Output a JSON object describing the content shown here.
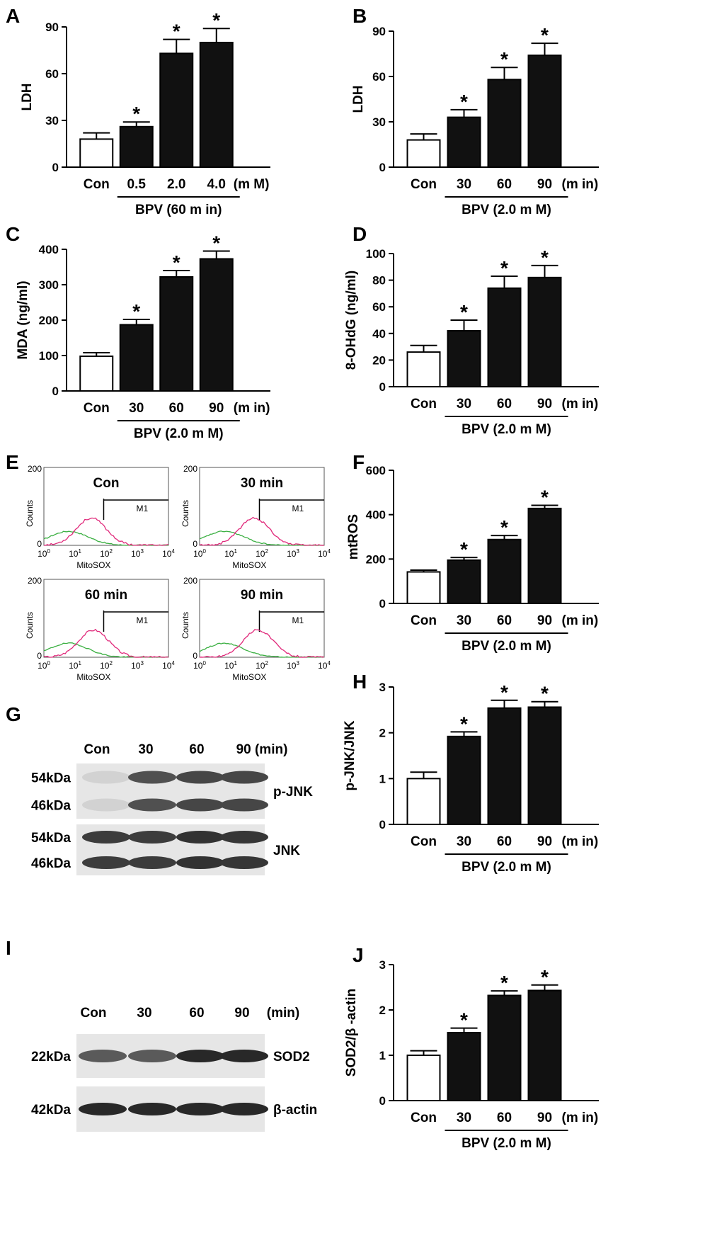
{
  "panel_labels": {
    "A": "A",
    "B": "B",
    "C": "C",
    "D": "D",
    "E": "E",
    "F": "F",
    "G": "G",
    "H": "H",
    "I": "I",
    "J": "J"
  },
  "chart_data": [
    {
      "id": "A",
      "type": "bar",
      "categories": [
        "Con",
        "0.5",
        "2.0",
        "4.0"
      ],
      "unit_label": "(m M)",
      "values": [
        18,
        26,
        73,
        80
      ],
      "errors": [
        4,
        3,
        9,
        9
      ],
      "significant": [
        false,
        true,
        true,
        true
      ],
      "ylabel": "LDH",
      "ylim": [
        0,
        90
      ],
      "yticks": [
        "0",
        "30",
        "60",
        "90"
      ],
      "group_label": "BPV (60 m in)",
      "star_symbol": "*"
    },
    {
      "id": "B",
      "type": "bar",
      "categories": [
        "Con",
        "30",
        "60",
        "90"
      ],
      "unit_label": "(m in)",
      "values": [
        18,
        33,
        58,
        74
      ],
      "errors": [
        4,
        5,
        8,
        8
      ],
      "significant": [
        false,
        true,
        true,
        true
      ],
      "ylabel": "LDH",
      "ylim": [
        0,
        90
      ],
      "yticks": [
        "0",
        "30",
        "60",
        "90"
      ],
      "group_label": "BPV (2.0 m M)",
      "star_symbol": "*"
    },
    {
      "id": "C",
      "type": "bar",
      "categories": [
        "Con",
        "30",
        "60",
        "90"
      ],
      "unit_label": "(m in)",
      "values": [
        98,
        187,
        322,
        373
      ],
      "errors": [
        10,
        15,
        18,
        22
      ],
      "significant": [
        false,
        true,
        true,
        true
      ],
      "ylabel": "MDA  (ng/ml)",
      "ylim": [
        0,
        400
      ],
      "yticks": [
        "0",
        "100",
        "200",
        "300",
        "400"
      ],
      "group_label": "BPV (2.0 m M)",
      "star_symbol": "*"
    },
    {
      "id": "D",
      "type": "bar",
      "categories": [
        "Con",
        "30",
        "60",
        "90"
      ],
      "unit_label": "(m in)",
      "values": [
        26,
        42,
        74,
        82
      ],
      "errors": [
        5,
        8,
        9,
        9
      ],
      "significant": [
        false,
        true,
        true,
        true
      ],
      "ylabel": "8-OHdG (ng/ml)",
      "ylim": [
        0,
        100
      ],
      "yticks": [
        "0",
        "20",
        "40",
        "60",
        "80",
        "100"
      ],
      "group_label": "BPV (2.0 m M)",
      "star_symbol": "*"
    },
    {
      "id": "F",
      "type": "bar",
      "categories": [
        "Con",
        "30",
        "60",
        "90"
      ],
      "unit_label": "(m in)",
      "values": [
        142,
        195,
        288,
        428
      ],
      "errors": [
        8,
        12,
        18,
        14
      ],
      "significant": [
        false,
        true,
        true,
        true
      ],
      "ylabel": "mtROS",
      "ylim": [
        0,
        600
      ],
      "yticks": [
        "0",
        "200",
        "400",
        "600"
      ],
      "group_label": "BPV (2.0 m M)",
      "star_symbol": "*"
    },
    {
      "id": "H",
      "type": "bar",
      "categories": [
        "Con",
        "30",
        "60",
        "90"
      ],
      "unit_label": "(m in)",
      "values": [
        1.0,
        1.92,
        2.54,
        2.56
      ],
      "errors": [
        0.14,
        0.1,
        0.17,
        0.12
      ],
      "significant": [
        false,
        true,
        true,
        true
      ],
      "ylabel": "p-JNK/JNK",
      "ylim": [
        0,
        3
      ],
      "yticks": [
        "0",
        "1",
        "2",
        "3"
      ],
      "group_label": "BPV (2.0 m M)",
      "star_symbol": "*"
    },
    {
      "id": "J",
      "type": "bar",
      "categories": [
        "Con",
        "30",
        "60",
        "90"
      ],
      "unit_label": "(m in)",
      "values": [
        1.0,
        1.5,
        2.32,
        2.43
      ],
      "errors": [
        0.1,
        0.1,
        0.1,
        0.12
      ],
      "significant": [
        false,
        true,
        true,
        true
      ],
      "ylabel": "SOD2/β -actin",
      "ylim": [
        0,
        3
      ],
      "yticks": [
        "0",
        "1",
        "2",
        "3"
      ],
      "group_label": "BPV (2.0 m M)",
      "star_symbol": "*"
    }
  ],
  "flow_panels": {
    "y_axis_label": "Counts",
    "x_axis_label": "MitoSOX",
    "top_tick": "200",
    "gate_label": "M1",
    "x_tick_base": "10",
    "x_tick_exponents": [
      "0",
      "1",
      "2",
      "3",
      "4"
    ],
    "panels": [
      {
        "title": "Con"
      },
      {
        "title": "30 min"
      },
      {
        "title": "60 min"
      },
      {
        "title": "90 min"
      }
    ],
    "colors": {
      "control": "#3cb043",
      "sample": "#e0287a"
    }
  },
  "blots": {
    "G": {
      "lanes": [
        "Con",
        "30",
        "60",
        "90 (min)"
      ],
      "rows": [
        {
          "protein": "p-JNK",
          "markers": [
            "54kDa",
            "46kDa"
          ],
          "intensity": [
            0.1,
            0.75,
            0.8,
            0.8
          ]
        },
        {
          "protein": "JNK",
          "markers": [
            "54kDa",
            "46kDa"
          ],
          "intensity": [
            0.85,
            0.85,
            0.9,
            0.88
          ]
        }
      ]
    },
    "I": {
      "lanes": [
        "Con",
        "30",
        "60",
        "90",
        "(min)"
      ],
      "rows": [
        {
          "protein": "SOD2",
          "markers": [
            "22kDa"
          ],
          "intensity": [
            0.7,
            0.7,
            0.95,
            0.95
          ]
        },
        {
          "protein": "β-actin",
          "markers": [
            "42kDa"
          ],
          "intensity": [
            0.95,
            0.95,
            0.95,
            0.95
          ]
        }
      ]
    }
  }
}
